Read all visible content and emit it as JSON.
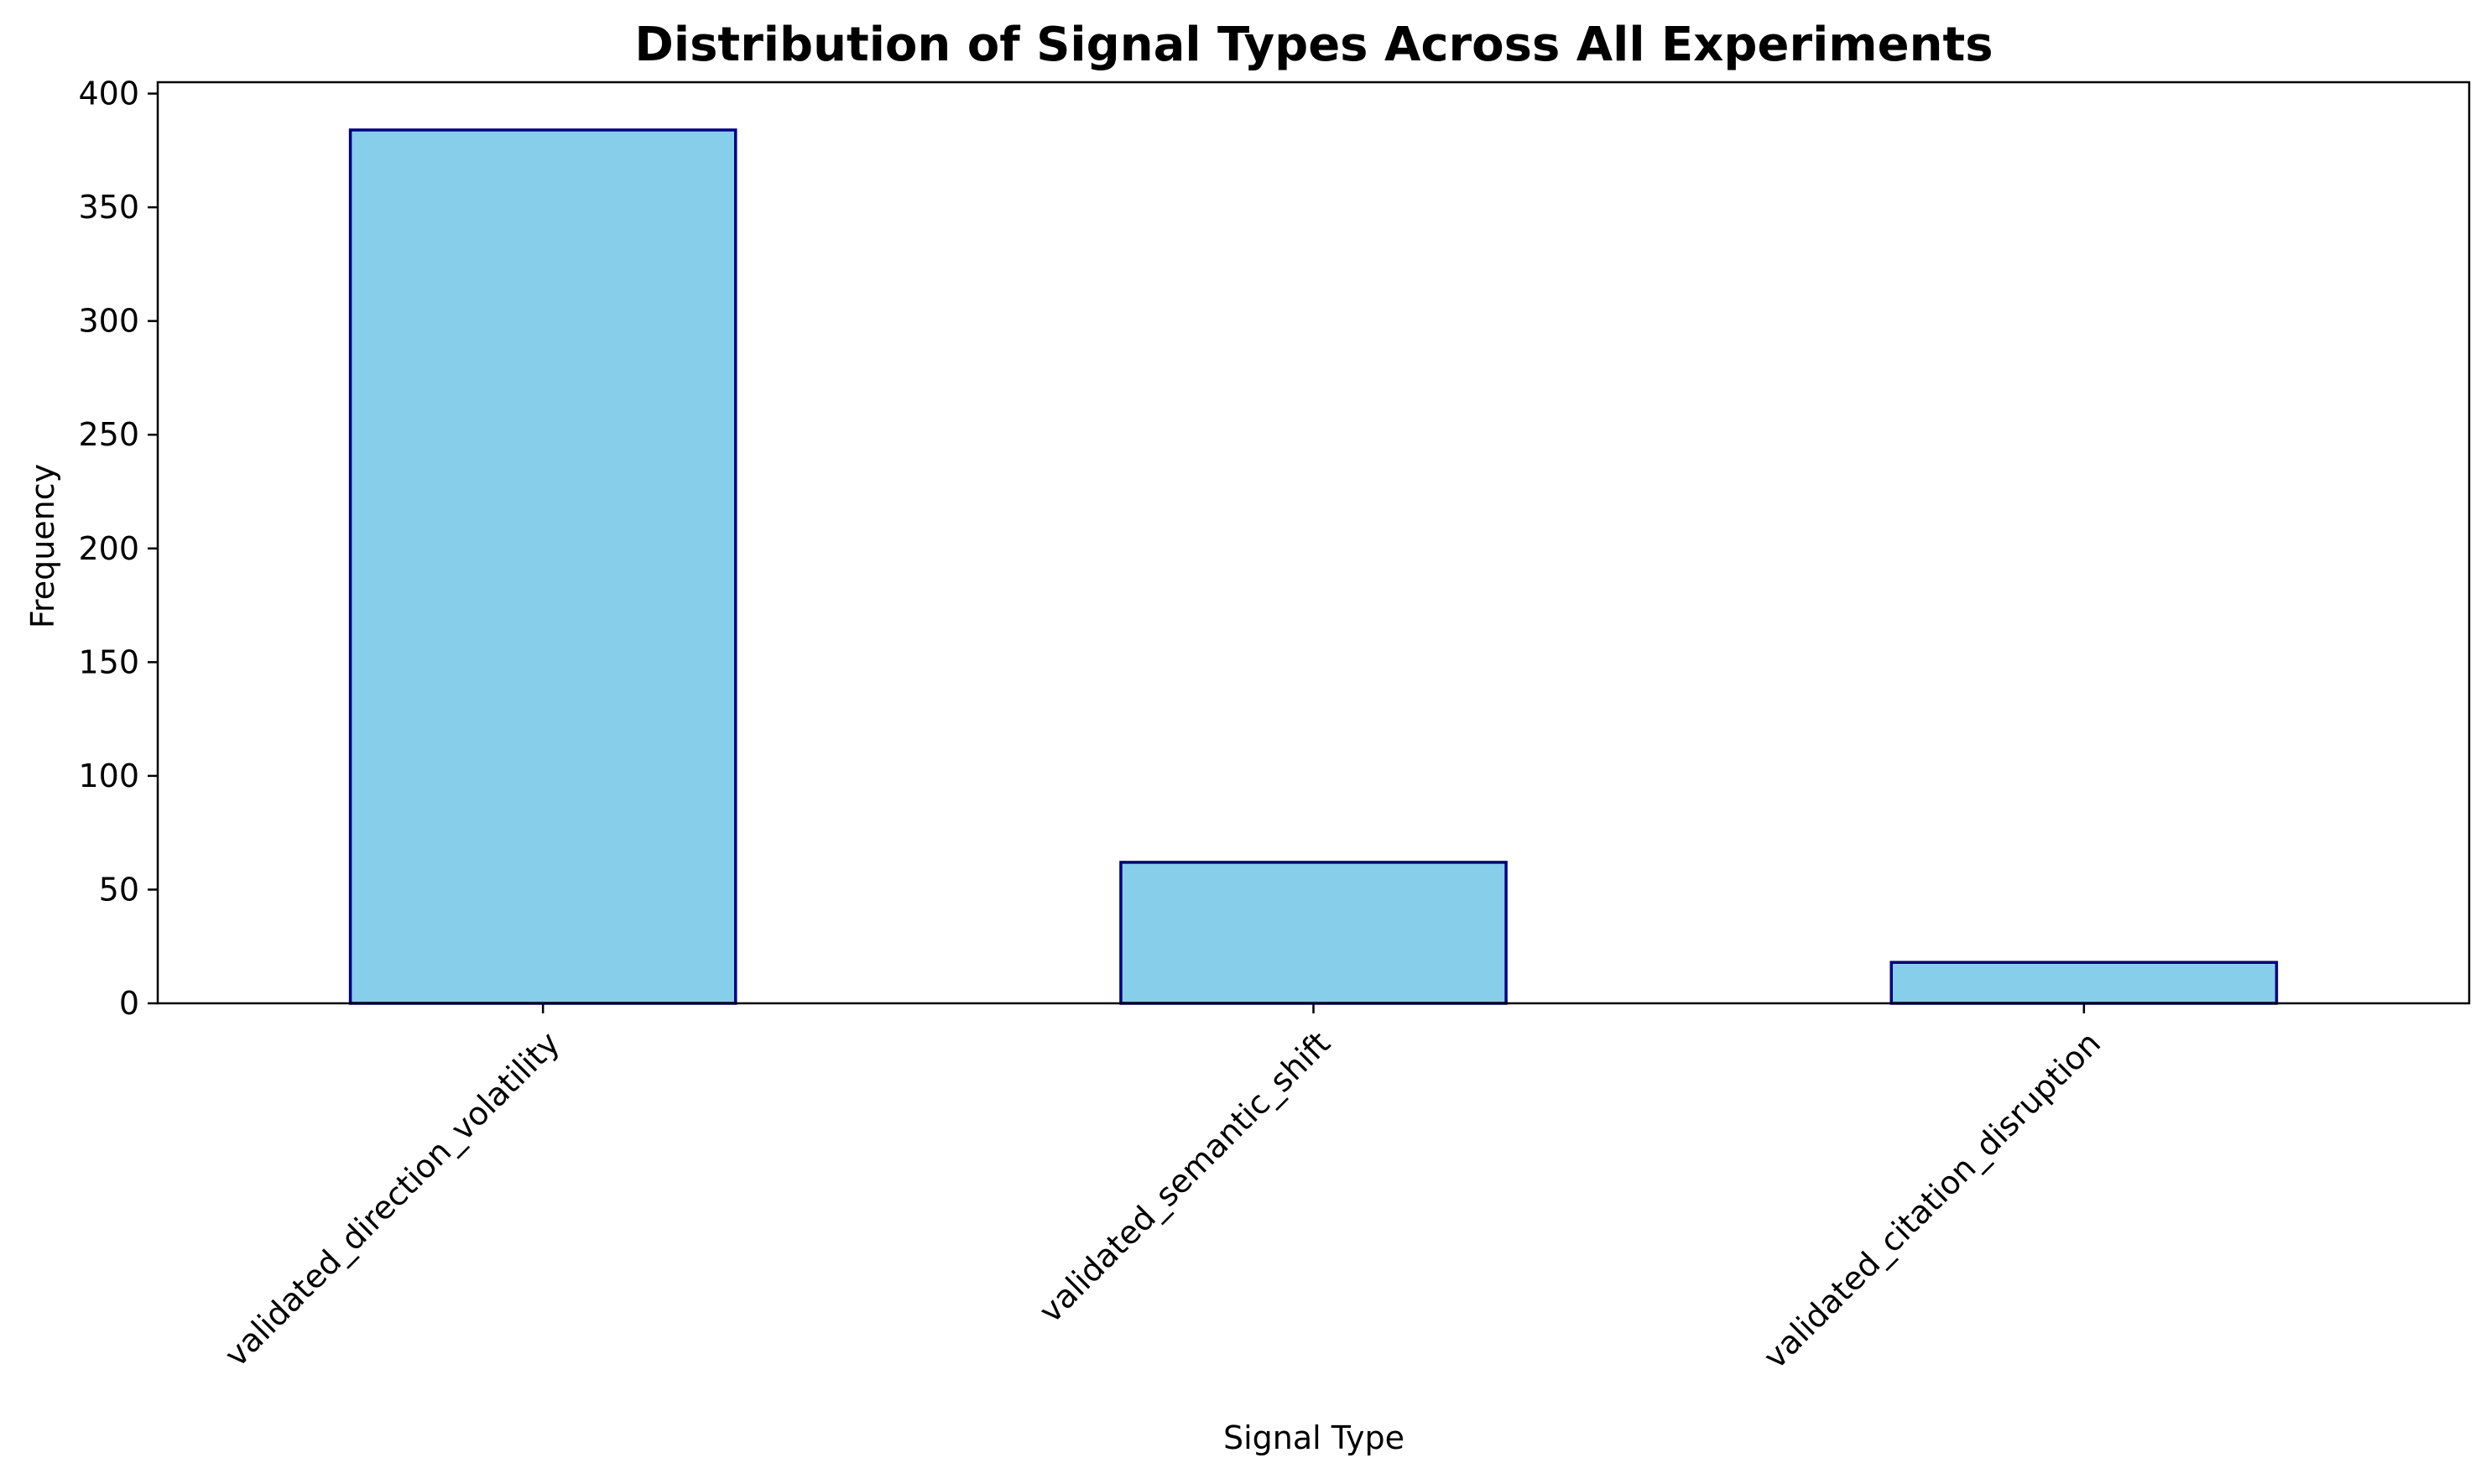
{
  "chart_data": {
    "type": "bar",
    "title": "Distribution of Signal Types Across All Experiments",
    "xlabel": "Signal Type",
    "ylabel": "Frequency",
    "categories": [
      "validated_direction_volatility",
      "validated_semantic_shift",
      "validated_citation_disruption"
    ],
    "values": [
      384,
      62,
      18
    ],
    "ylim": [
      0,
      405
    ],
    "yticks": [
      0,
      50,
      100,
      150,
      200,
      250,
      300,
      350,
      400
    ],
    "grid": false,
    "legend": "none",
    "colors": {
      "bar_fill": "#87CEEB",
      "bar_edge": "#000080",
      "axis": "#000000"
    }
  }
}
